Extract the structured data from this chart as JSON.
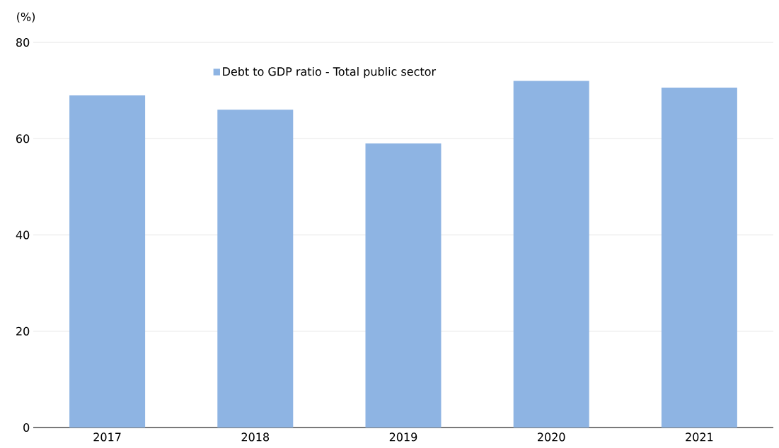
{
  "chart_data": {
    "type": "bar",
    "ylabel": "(%)",
    "categories": [
      "2017",
      "2018",
      "2019",
      "2020",
      "2021"
    ],
    "series": [
      {
        "name": "Debt to GDP ratio - Total public sector",
        "color": "#8eb4e3",
        "values": [
          69,
          66,
          59,
          72,
          70.6
        ]
      }
    ],
    "ylim": [
      0,
      80
    ],
    "yticks": [
      0,
      20,
      40,
      60,
      80
    ],
    "grid": "y",
    "legend": "top"
  }
}
